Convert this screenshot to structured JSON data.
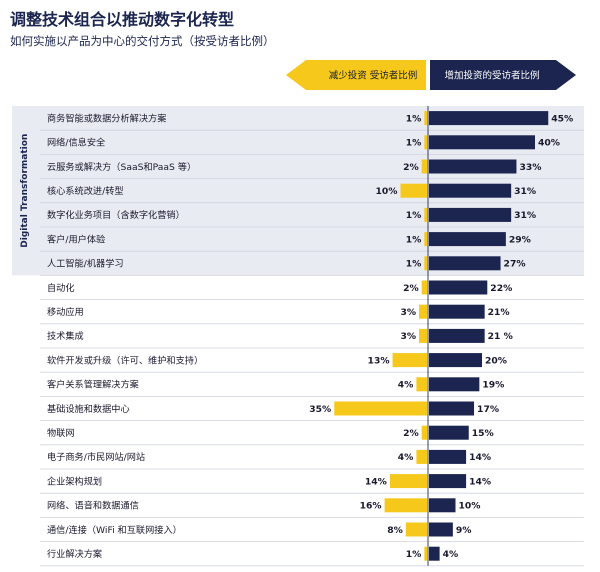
{
  "header": {
    "title": "调整技术组合以推动数字化转型",
    "subtitle": "如何实施以产品为中心的交付方式（按受访者比例）"
  },
  "legend": {
    "decrease_label": "减少投资 受访者比例",
    "increase_label": "增加投资的受访者比例"
  },
  "group_label": "Digital Transformation",
  "colors": {
    "decrease": "#f6c81b",
    "increase": "#1b2550",
    "highlight_band": "#e9ebf2",
    "row_divider": "#cfd3df",
    "center_axis": "#3a3f5c"
  },
  "chart_data": {
    "type": "bar",
    "title": "调整技术组合以推动数字化转型",
    "subtitle": "如何实施以产品为中心的交付方式（按受访者比例）",
    "unit": "%",
    "categories": [
      "商务智能或数据分析解决方案",
      "网络/信息安全",
      "云服务或解决方（SaaS和PaaS 等）",
      "核心系统改进/转型",
      "数字化业务项目（含数字化营销）",
      "客户/用户体验",
      "人工智能/机器学习",
      "自动化",
      "移动应用",
      "技术集成",
      "软件开发或升级（许可、维护和支持）",
      "客户关系管理解决方案",
      "基础设施和数据中心",
      "物联网",
      "电子商务/市民网站/网站",
      "企业架构规划",
      "网络、语音和数据通信",
      "通信/连接（WiFi 和互联网接入）",
      "行业解决方案"
    ],
    "series": [
      {
        "name": "减少投资 受访者比例",
        "values": [
          1,
          1,
          2,
          10,
          1,
          1,
          1,
          2,
          3,
          3,
          13,
          4,
          35,
          2,
          4,
          14,
          16,
          8,
          1
        ]
      },
      {
        "name": "增加投资的受访者比例",
        "values": [
          45,
          40,
          33,
          31,
          31,
          29,
          27,
          22,
          21,
          21,
          20,
          19,
          17,
          15,
          14,
          14,
          10,
          9,
          4
        ]
      }
    ],
    "value_labels": {
      "decrease": [
        "1%",
        "1%",
        "2%",
        "10%",
        "1%",
        "1%",
        "1%",
        "2%",
        "3%",
        "3%",
        "13%",
        "4%",
        "35%",
        "2%",
        "4%",
        "14%",
        "16%",
        "8%",
        "1%"
      ],
      "increase": [
        "45%",
        "40%",
        "33%",
        "31%",
        "31%",
        "29%",
        "27%",
        "22%",
        "21%",
        "21 %",
        "20%",
        "19%",
        "17%",
        "15%",
        "14%",
        "14%",
        "10%",
        "9%",
        "4%"
      ]
    },
    "highlighted_group": {
      "label": "Digital Transformation",
      "count": 7
    },
    "ylim": [
      0,
      45
    ],
    "grid": false,
    "legend_position": "top"
  }
}
